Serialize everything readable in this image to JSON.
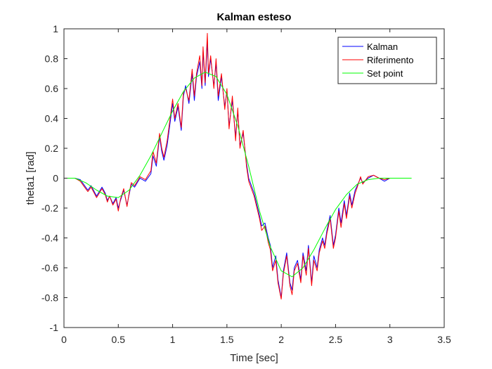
{
  "chart_data": {
    "type": "line",
    "title": "Kalman esteso",
    "xlabel": "Time [sec]",
    "ylabel": "theta1 [rad]",
    "xlim": [
      0,
      3.5
    ],
    "ylim": [
      -1,
      1
    ],
    "xticks": [
      0,
      0.5,
      1,
      1.5,
      2,
      2.5,
      3,
      3.5
    ],
    "xtick_labels": [
      "0",
      "0.5",
      "1",
      "1.5",
      "2",
      "2.5",
      "3",
      "3.5"
    ],
    "yticks": [
      -1,
      -0.8,
      -0.6,
      -0.4,
      -0.2,
      0,
      0.2,
      0.4,
      0.6,
      0.8,
      1
    ],
    "ytick_labels": [
      "-1",
      "-0.8",
      "-0.6",
      "-0.4",
      "-0.2",
      "0",
      "0.2",
      "0.4",
      "0.6",
      "0.8",
      "1"
    ],
    "grid": false,
    "box": true,
    "legend_position": "top-right",
    "series": [
      {
        "name": "Kalman",
        "color": "#0000ff",
        "x": [
          0,
          0.1,
          0.15,
          0.2,
          0.22,
          0.25,
          0.3,
          0.35,
          0.38,
          0.4,
          0.42,
          0.45,
          0.48,
          0.5,
          0.52,
          0.55,
          0.58,
          0.6,
          0.62,
          0.65,
          0.7,
          0.75,
          0.8,
          0.82,
          0.85,
          0.88,
          0.9,
          0.92,
          0.95,
          1.0,
          1.02,
          1.05,
          1.08,
          1.1,
          1.12,
          1.15,
          1.18,
          1.2,
          1.22,
          1.25,
          1.27,
          1.28,
          1.3,
          1.32,
          1.33,
          1.35,
          1.38,
          1.4,
          1.42,
          1.45,
          1.48,
          1.5,
          1.52,
          1.55,
          1.58,
          1.6,
          1.62,
          1.65,
          1.68,
          1.7,
          1.75,
          1.8,
          1.82,
          1.85,
          1.88,
          1.9,
          1.92,
          1.95,
          1.97,
          2.0,
          2.02,
          2.05,
          2.08,
          2.1,
          2.12,
          2.15,
          2.18,
          2.2,
          2.23,
          2.25,
          2.28,
          2.3,
          2.33,
          2.35,
          2.38,
          2.4,
          2.42,
          2.45,
          2.48,
          2.5,
          2.53,
          2.55,
          2.58,
          2.6,
          2.63,
          2.65,
          2.68,
          2.7,
          2.73,
          2.75,
          2.8,
          2.85,
          2.9,
          2.95,
          3.0
        ],
        "y": [
          0,
          0.0,
          -0.01,
          -0.06,
          -0.08,
          -0.05,
          -0.12,
          -0.06,
          -0.1,
          -0.15,
          -0.12,
          -0.17,
          -0.13,
          -0.2,
          -0.15,
          -0.08,
          -0.18,
          -0.11,
          -0.04,
          -0.06,
          0.0,
          -0.02,
          0.03,
          0.15,
          0.08,
          0.28,
          0.18,
          0.12,
          0.22,
          0.5,
          0.38,
          0.48,
          0.32,
          0.55,
          0.62,
          0.5,
          0.7,
          0.52,
          0.68,
          0.78,
          0.6,
          0.85,
          0.62,
          0.92,
          0.68,
          0.8,
          0.62,
          0.77,
          0.52,
          0.68,
          0.48,
          0.58,
          0.35,
          0.52,
          0.28,
          0.45,
          0.22,
          0.3,
          0.1,
          0.0,
          -0.1,
          -0.25,
          -0.32,
          -0.3,
          -0.4,
          -0.45,
          -0.6,
          -0.52,
          -0.68,
          -0.8,
          -0.62,
          -0.5,
          -0.7,
          -0.75,
          -0.6,
          -0.55,
          -0.68,
          -0.5,
          -0.62,
          -0.45,
          -0.7,
          -0.52,
          -0.6,
          -0.48,
          -0.4,
          -0.45,
          -0.35,
          -0.25,
          -0.45,
          -0.38,
          -0.2,
          -0.3,
          -0.15,
          -0.25,
          -0.1,
          -0.18,
          -0.08,
          -0.05,
          0.0,
          -0.03,
          0.0,
          0.02,
          0.0,
          -0.02,
          0.0
        ]
      },
      {
        "name": "Riferimento",
        "color": "#ff0000",
        "x": [
          0,
          0.1,
          0.15,
          0.2,
          0.22,
          0.25,
          0.3,
          0.35,
          0.38,
          0.4,
          0.42,
          0.45,
          0.48,
          0.5,
          0.52,
          0.55,
          0.58,
          0.6,
          0.62,
          0.65,
          0.7,
          0.75,
          0.8,
          0.82,
          0.85,
          0.88,
          0.9,
          0.92,
          0.95,
          1.0,
          1.02,
          1.05,
          1.08,
          1.1,
          1.12,
          1.15,
          1.18,
          1.2,
          1.22,
          1.25,
          1.27,
          1.28,
          1.3,
          1.32,
          1.33,
          1.35,
          1.38,
          1.4,
          1.42,
          1.45,
          1.48,
          1.5,
          1.52,
          1.55,
          1.58,
          1.6,
          1.62,
          1.65,
          1.68,
          1.7,
          1.75,
          1.8,
          1.82,
          1.85,
          1.88,
          1.9,
          1.92,
          1.95,
          1.97,
          2.0,
          2.02,
          2.05,
          2.08,
          2.1,
          2.12,
          2.15,
          2.18,
          2.2,
          2.23,
          2.25,
          2.28,
          2.3,
          2.33,
          2.35,
          2.38,
          2.4,
          2.42,
          2.45,
          2.48,
          2.5,
          2.53,
          2.55,
          2.58,
          2.6,
          2.63,
          2.65,
          2.68,
          2.7,
          2.73,
          2.75,
          2.8,
          2.85,
          2.9,
          2.95,
          3.0
        ],
        "y": [
          0,
          0.0,
          -0.02,
          -0.07,
          -0.09,
          -0.06,
          -0.13,
          -0.07,
          -0.11,
          -0.16,
          -0.12,
          -0.18,
          -0.14,
          -0.22,
          -0.14,
          -0.07,
          -0.19,
          -0.1,
          -0.03,
          -0.05,
          0.01,
          -0.01,
          0.05,
          0.18,
          0.1,
          0.3,
          0.2,
          0.14,
          0.25,
          0.53,
          0.4,
          0.5,
          0.34,
          0.58,
          0.6,
          0.52,
          0.73,
          0.55,
          0.7,
          0.82,
          0.62,
          0.88,
          0.64,
          0.97,
          0.7,
          0.82,
          0.6,
          0.8,
          0.55,
          0.7,
          0.46,
          0.6,
          0.33,
          0.55,
          0.25,
          0.47,
          0.2,
          0.32,
          0.08,
          -0.02,
          -0.12,
          -0.27,
          -0.35,
          -0.32,
          -0.43,
          -0.48,
          -0.62,
          -0.55,
          -0.7,
          -0.81,
          -0.64,
          -0.52,
          -0.72,
          -0.78,
          -0.62,
          -0.57,
          -0.7,
          -0.52,
          -0.65,
          -0.47,
          -0.72,
          -0.55,
          -0.62,
          -0.5,
          -0.42,
          -0.47,
          -0.37,
          -0.27,
          -0.47,
          -0.4,
          -0.22,
          -0.33,
          -0.17,
          -0.27,
          -0.12,
          -0.2,
          -0.1,
          -0.06,
          0.01,
          -0.04,
          0.01,
          0.02,
          0.0,
          -0.01,
          0.0
        ]
      },
      {
        "name": "Set point",
        "color": "#00ff00",
        "x": [
          0,
          0.1,
          0.2,
          0.3,
          0.4,
          0.5,
          0.6,
          0.7,
          0.8,
          0.9,
          1.0,
          1.1,
          1.2,
          1.3,
          1.4,
          1.5,
          1.6,
          1.7,
          1.8,
          1.9,
          2.0,
          2.1,
          2.2,
          2.3,
          2.4,
          2.5,
          2.6,
          2.7,
          2.8,
          2.9,
          3.0,
          3.1,
          3.2
        ],
        "y": [
          0,
          0.0,
          -0.03,
          -0.08,
          -0.12,
          -0.13,
          -0.08,
          0.02,
          0.15,
          0.3,
          0.45,
          0.58,
          0.67,
          0.71,
          0.68,
          0.56,
          0.35,
          0.08,
          -0.22,
          -0.46,
          -0.62,
          -0.66,
          -0.6,
          -0.48,
          -0.34,
          -0.21,
          -0.11,
          -0.04,
          -0.01,
          0.0,
          0.0,
          0.0,
          0.0
        ]
      }
    ]
  }
}
